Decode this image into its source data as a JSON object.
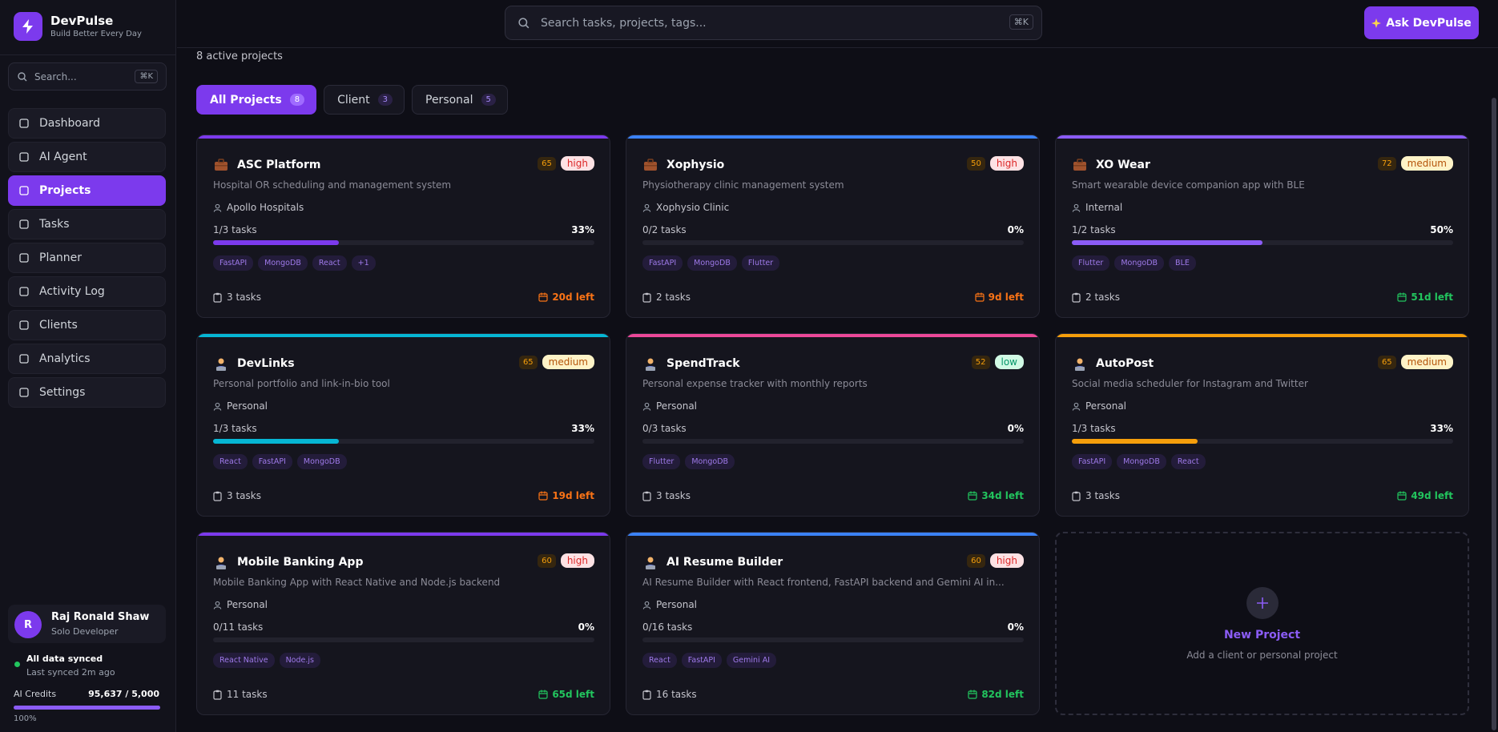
{
  "brand": {
    "name": "DevPulse",
    "tagline": "Build Better Every Day"
  },
  "sidebar_search": {
    "placeholder": "Search...",
    "shortcut": "⌘K"
  },
  "nav": [
    {
      "label": "Dashboard",
      "active": false
    },
    {
      "label": "AI Agent",
      "active": false
    },
    {
      "label": "Projects",
      "active": true
    },
    {
      "label": "Tasks",
      "active": false
    },
    {
      "label": "Planner",
      "active": false
    },
    {
      "label": "Activity Log",
      "active": false
    },
    {
      "label": "Clients",
      "active": false
    },
    {
      "label": "Analytics",
      "active": false
    },
    {
      "label": "Settings",
      "active": false
    }
  ],
  "user": {
    "initial": "R",
    "name": "Raj Ronald Shaw",
    "role": "Solo Developer"
  },
  "sync": {
    "status": "All data synced",
    "detail": "Last synced 2m ago"
  },
  "credits": {
    "label": "AI Credits",
    "value": "95,637 / 5,000",
    "percent": "100%"
  },
  "header": {
    "search_placeholder": "Search tasks, projects, tags...",
    "shortcut": "⌘K",
    "button": "Ask DevPulse"
  },
  "summary": "8 active projects",
  "tabs": [
    {
      "label": "All Projects",
      "count": 8,
      "active": true
    },
    {
      "label": "Client",
      "count": 3,
      "active": false
    },
    {
      "label": "Personal",
      "count": 5,
      "active": false
    }
  ],
  "projects": [
    {
      "icon": "briefcase",
      "name": "ASC Platform",
      "score": 65,
      "priority": "high",
      "description": "Hospital OR scheduling and management system",
      "owner": "Apollo Hospitals",
      "tasks_done": "1/3 tasks",
      "progress": "33%",
      "tags": [
        "FastAPI",
        "MongoDB",
        "React",
        "+1"
      ],
      "task_count": "3 tasks",
      "deadline": "20d left",
      "accent": "#7c3aed",
      "deadline_color": "#f97316"
    },
    {
      "icon": "briefcase",
      "name": "Xophysio",
      "score": 50,
      "priority": "high",
      "description": "Physiotherapy clinic management system",
      "owner": "Xophysio Clinic",
      "tasks_done": "0/2 tasks",
      "progress": "0%",
      "tags": [
        "FastAPI",
        "MongoDB",
        "Flutter"
      ],
      "task_count": "2 tasks",
      "deadline": "9d left",
      "accent": "#3b82f6",
      "deadline_color": "#f97316"
    },
    {
      "icon": "briefcase",
      "name": "XO Wear",
      "score": 72,
      "priority": "medium",
      "description": "Smart wearable device companion app with BLE",
      "owner": "Internal",
      "tasks_done": "1/2 tasks",
      "progress": "50%",
      "tags": [
        "Flutter",
        "MongoDB",
        "BLE"
      ],
      "task_count": "2 tasks",
      "deadline": "51d left",
      "accent": "#8b5cf6",
      "deadline_color": "#22c55e"
    },
    {
      "icon": "person",
      "name": "DevLinks",
      "score": 65,
      "priority": "medium",
      "description": "Personal portfolio and link-in-bio tool",
      "owner": "Personal",
      "tasks_done": "1/3 tasks",
      "progress": "33%",
      "tags": [
        "React",
        "FastAPI",
        "MongoDB"
      ],
      "task_count": "3 tasks",
      "deadline": "19d left",
      "accent": "#06b6d4",
      "deadline_color": "#f97316"
    },
    {
      "icon": "person",
      "name": "SpendTrack",
      "score": 52,
      "priority": "low",
      "description": "Personal expense tracker with monthly reports",
      "owner": "Personal",
      "tasks_done": "0/3 tasks",
      "progress": "0%",
      "tags": [
        "Flutter",
        "MongoDB"
      ],
      "task_count": "3 tasks",
      "deadline": "34d left",
      "accent": "#ec4899",
      "deadline_color": "#22c55e"
    },
    {
      "icon": "person",
      "name": "AutoPost",
      "score": 65,
      "priority": "medium",
      "description": "Social media scheduler for Instagram and Twitter",
      "owner": "Personal",
      "tasks_done": "1/3 tasks",
      "progress": "33%",
      "tags": [
        "FastAPI",
        "MongoDB",
        "React"
      ],
      "task_count": "3 tasks",
      "deadline": "49d left",
      "accent": "#f59e0b",
      "deadline_color": "#22c55e"
    },
    {
      "icon": "person",
      "name": "Mobile Banking App",
      "score": 60,
      "priority": "high",
      "description": "Mobile Banking App with React Native and Node.js backend",
      "owner": "Personal",
      "tasks_done": "0/11 tasks",
      "progress": "0%",
      "tags": [
        "React Native",
        "Node.js"
      ],
      "task_count": "11 tasks",
      "deadline": "65d left",
      "accent": "#7c3aed",
      "deadline_color": "#22c55e"
    },
    {
      "icon": "person",
      "name": "AI Resume Builder",
      "score": 60,
      "priority": "high",
      "description": "AI Resume Builder with React frontend, FastAPI backend and Gemini AI in...",
      "owner": "Personal",
      "tasks_done": "0/16 tasks",
      "progress": "0%",
      "tags": [
        "React",
        "FastAPI",
        "Gemini AI"
      ],
      "task_count": "16 tasks",
      "deadline": "82d left",
      "accent": "#3b82f6",
      "deadline_color": "#22c55e"
    }
  ],
  "new_project": {
    "title": "New Project",
    "subtitle": "Add a client or personal project"
  }
}
